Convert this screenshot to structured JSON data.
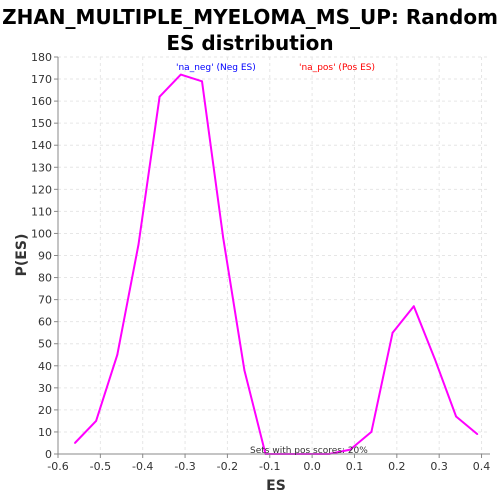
{
  "chart_data": {
    "type": "line",
    "title": "ZHAN_MULTIPLE_MYELOMA_MS_UP: Random ES distribution",
    "xlabel": "ES",
    "ylabel": "P(ES)",
    "xlim": [
      -0.6,
      0.42
    ],
    "ylim": [
      0,
      180
    ],
    "xticks": [
      "-0.6",
      "-0.5",
      "-0.4",
      "-0.3",
      "-0.2",
      "-0.1",
      "0.0",
      "0.1",
      "0.2",
      "0.3",
      "0.4"
    ],
    "yticks": [
      "0",
      "10",
      "20",
      "30",
      "40",
      "50",
      "60",
      "70",
      "80",
      "90",
      "100",
      "110",
      "120",
      "130",
      "140",
      "150",
      "160",
      "170",
      "180"
    ],
    "grid": true,
    "series": [
      {
        "color": "#ff00ff",
        "x": [
          -0.56,
          -0.51,
          -0.46,
          -0.41,
          -0.36,
          -0.31,
          -0.26,
          -0.21,
          -0.16,
          -0.11,
          -0.06,
          -0.01,
          0.04,
          0.09,
          0.14,
          0.19,
          0.24,
          0.29,
          0.34,
          0.39
        ],
        "y": [
          5,
          15,
          45,
          95,
          162,
          172,
          169,
          98,
          38,
          0,
          0,
          0,
          0,
          2,
          10,
          55,
          67,
          43,
          17,
          9
        ]
      }
    ],
    "legend": [
      {
        "label": "'na_neg' (Neg ES)",
        "color": "#0000ff"
      },
      {
        "label": "'na_pos' (Pos ES)",
        "color": "#ff0000"
      }
    ],
    "annotation": "Sets with pos scores: 20%"
  }
}
